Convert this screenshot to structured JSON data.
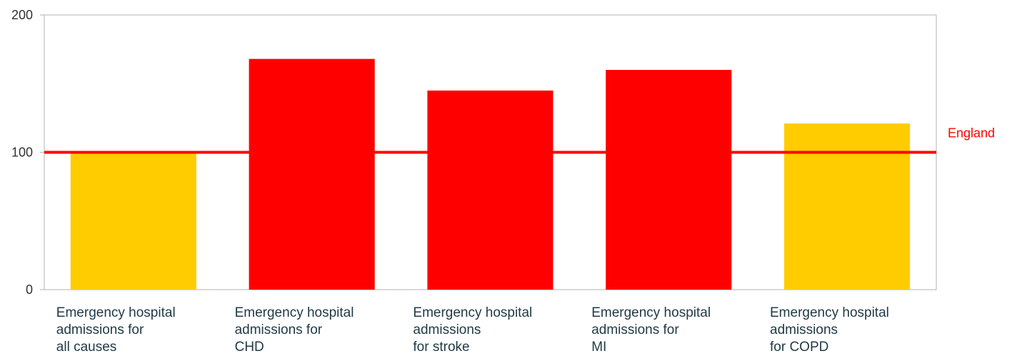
{
  "chart_data": {
    "type": "bar",
    "categories": [
      [
        "Emergency hospital",
        "admissions for",
        "all causes"
      ],
      [
        "Emergency hospital",
        "admissions for",
        "CHD"
      ],
      [
        "Emergency hospital",
        "admissions",
        "for stroke"
      ],
      [
        "Emergency hospital",
        "admissions for",
        "MI"
      ],
      [
        "Emergency hospital",
        "admissions",
        "for COPD"
      ]
    ],
    "values": [
      100,
      168,
      145,
      160,
      121
    ],
    "bar_colors": [
      "#FFCC00",
      "#FF0000",
      "#FF0000",
      "#FF0000",
      "#FFCC00"
    ],
    "ylim": [
      0,
      200
    ],
    "yticks": [
      "0",
      "100",
      "200"
    ],
    "reference_line": {
      "label": "England",
      "value": 100,
      "color": "#FF0000"
    },
    "title": "",
    "xlabel": "",
    "ylabel": "",
    "grid": false
  }
}
